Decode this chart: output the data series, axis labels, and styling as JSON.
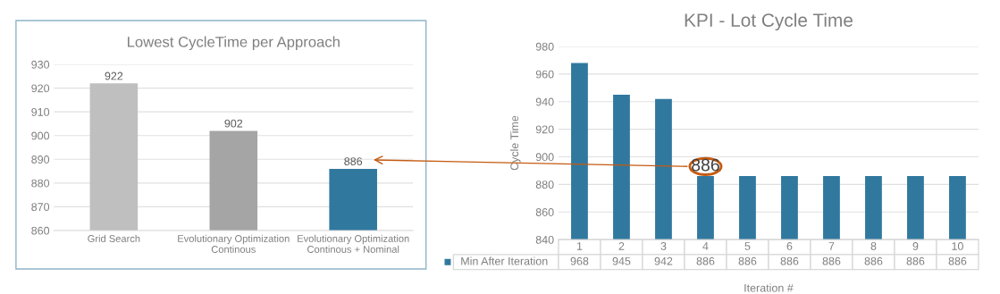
{
  "chart_data": [
    {
      "type": "bar",
      "title": "Lowest CycleTime per Approach",
      "categories": [
        "Grid Search",
        "Evolutionary Optimization\nContinous",
        "Evolutionary Optimization\nContinous + Nominal"
      ],
      "values": [
        922,
        902,
        886
      ],
      "colors": [
        "#bfbfbf",
        "#a5a5a5",
        "#31789f"
      ],
      "ylim": [
        860,
        930
      ],
      "yticks": [
        860,
        870,
        880,
        890,
        900,
        910,
        920,
        930
      ],
      "grid": "y",
      "data_labels": true
    },
    {
      "type": "bar",
      "title": "KPI - Lot Cycle Time",
      "xlabel": "Iteration #",
      "ylabel": "Cycle Time",
      "categories": [
        "1",
        "2",
        "3",
        "4",
        "5",
        "6",
        "7",
        "8",
        "9",
        "10"
      ],
      "series": [
        {
          "name": "Min After Iteration",
          "color": "#31789f",
          "values": [
            968,
            945,
            942,
            886,
            886,
            886,
            886,
            886,
            886,
            886
          ]
        }
      ],
      "ylim": [
        840,
        980
      ],
      "yticks": [
        840,
        860,
        880,
        900,
        920,
        940,
        960,
        980
      ],
      "grid": "y",
      "data_labels": true,
      "annotations": [
        {
          "text": "886",
          "x": "4",
          "y": 886
        }
      ]
    }
  ]
}
